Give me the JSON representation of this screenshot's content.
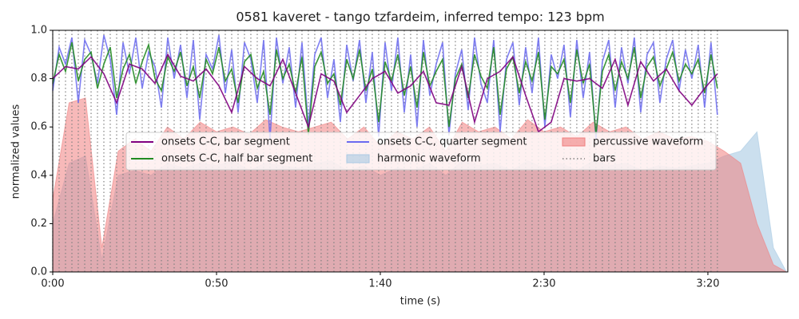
{
  "chart_data": {
    "type": "line",
    "title": "0581 kaveret - tango tzfardeim, inferred tempo: 123 bpm",
    "xlabel": "time (s)",
    "ylabel": "normalized values",
    "xlim": [
      0,
      224.4
    ],
    "ylim": [
      0,
      1
    ],
    "xticks": [
      {
        "value": 0,
        "label": "0:00"
      },
      {
        "value": 50,
        "label": "0:50"
      },
      {
        "value": 100,
        "label": "1:40"
      },
      {
        "value": 150,
        "label": "2:30"
      },
      {
        "value": 200,
        "label": "3:20"
      }
    ],
    "yticks": [
      {
        "value": 0,
        "label": "0.0"
      },
      {
        "value": 0.2,
        "label": "0.2"
      },
      {
        "value": 0.4,
        "label": "0.4"
      },
      {
        "value": 0.6,
        "label": "0.6"
      },
      {
        "value": 0.8,
        "label": "0.8"
      },
      {
        "value": 1,
        "label": "1.0"
      }
    ],
    "x": [
      0,
      1.95,
      3.9,
      5.85,
      7.8,
      9.76,
      11.71,
      13.66,
      15.61,
      17.56,
      19.51,
      21.46,
      23.41,
      25.36,
      27.31,
      29.27,
      31.22,
      33.17,
      35.12,
      37.07,
      39.02,
      40.97,
      42.92,
      44.87,
      46.82,
      48.78,
      50.73,
      52.68,
      54.63,
      56.58,
      58.53,
      60.48,
      62.43,
      64.38,
      66.33,
      68.29,
      70.24,
      72.19,
      74.14,
      76.09,
      78.04,
      79.99,
      81.94,
      83.89,
      85.84,
      87.8,
      89.75,
      91.7,
      93.65,
      95.6,
      97.55,
      99.5,
      101.45,
      103.4,
      105.35,
      107.31,
      109.26,
      111.21,
      113.16,
      115.11,
      117.06,
      119.01,
      120.96,
      122.91,
      124.86,
      126.82,
      128.77,
      130.72,
      132.67,
      134.62,
      136.57,
      138.52,
      140.47,
      142.42,
      144.37,
      146.33,
      148.28,
      150.23,
      152.18,
      154.13,
      156.08,
      158.03,
      159.98,
      161.93,
      163.88,
      165.84,
      167.79,
      169.74,
      171.69,
      173.64,
      175.59,
      177.54,
      179.49,
      181.44,
      183.39,
      185.35,
      187.3,
      189.25,
      191.2,
      193.15,
      195.1,
      197.05,
      199,
      200.95,
      202.9
    ],
    "areas": [
      {
        "name": "harmonic waveform",
        "color": "#a9c9e3",
        "x": [
          0,
          5,
          10,
          15,
          20,
          25,
          30,
          35,
          40,
          45,
          50,
          55,
          60,
          65,
          70,
          75,
          80,
          85,
          90,
          95,
          100,
          105,
          110,
          115,
          120,
          125,
          130,
          135,
          140,
          145,
          150,
          155,
          160,
          165,
          170,
          175,
          180,
          185,
          190,
          195,
          200,
          205,
          210,
          215,
          220,
          224
        ],
        "values": [
          0.2,
          0.45,
          0.48,
          0.05,
          0.4,
          0.42,
          0.4,
          0.45,
          0.43,
          0.45,
          0.44,
          0.46,
          0.42,
          0.45,
          0.44,
          0.43,
          0.45,
          0.46,
          0.42,
          0.44,
          0.4,
          0.43,
          0.42,
          0.45,
          0.4,
          0.46,
          0.44,
          0.45,
          0.42,
          0.46,
          0.43,
          0.45,
          0.42,
          0.46,
          0.44,
          0.45,
          0.42,
          0.44,
          0.43,
          0.44,
          0.45,
          0.48,
          0.5,
          0.58,
          0.1,
          0
        ]
      },
      {
        "name": "percussive waveform",
        "color": "#f08080",
        "x": [
          0,
          5,
          10,
          15,
          20,
          25,
          30,
          35,
          40,
          45,
          50,
          55,
          60,
          65,
          70,
          75,
          80,
          85,
          90,
          95,
          100,
          105,
          110,
          115,
          120,
          125,
          130,
          135,
          140,
          145,
          150,
          155,
          160,
          165,
          170,
          175,
          180,
          185,
          190,
          195,
          200,
          205,
          210,
          215,
          220,
          224
        ],
        "values": [
          0.3,
          0.7,
          0.72,
          0.1,
          0.5,
          0.55,
          0.5,
          0.6,
          0.55,
          0.62,
          0.58,
          0.6,
          0.57,
          0.63,
          0.6,
          0.58,
          0.6,
          0.62,
          0.55,
          0.6,
          0.52,
          0.58,
          0.55,
          0.6,
          0.5,
          0.62,
          0.58,
          0.6,
          0.55,
          0.63,
          0.58,
          0.6,
          0.56,
          0.62,
          0.58,
          0.6,
          0.55,
          0.58,
          0.55,
          0.56,
          0.54,
          0.5,
          0.45,
          0.2,
          0.03,
          0
        ]
      }
    ],
    "bars": {
      "name": "bars",
      "color": "#808080"
    },
    "series": [
      {
        "name": "onsets C-C, bar segment",
        "color": "#800080",
        "x": [
          0,
          3.9,
          7.8,
          11.71,
          15.61,
          19.51,
          23.41,
          27.31,
          31.22,
          35.12,
          39.02,
          42.92,
          46.82,
          50.73,
          54.63,
          58.53,
          62.43,
          66.33,
          70.24,
          74.14,
          78.04,
          81.94,
          85.84,
          89.75,
          93.65,
          97.55,
          101.45,
          105.35,
          109.26,
          113.16,
          117.06,
          120.96,
          124.86,
          128.77,
          132.67,
          136.57,
          140.47,
          144.37,
          148.28,
          152.18,
          156.08,
          159.98,
          163.88,
          167.79,
          171.69,
          175.59,
          179.49,
          183.39,
          187.3,
          191.2,
          195.1,
          199,
          202.9
        ],
        "values": [
          0.8,
          0.85,
          0.84,
          0.89,
          0.82,
          0.7,
          0.86,
          0.84,
          0.78,
          0.9,
          0.81,
          0.79,
          0.84,
          0.77,
          0.66,
          0.85,
          0.8,
          0.77,
          0.88,
          0.74,
          0.6,
          0.82,
          0.79,
          0.66,
          0.73,
          0.8,
          0.83,
          0.74,
          0.77,
          0.83,
          0.7,
          0.69,
          0.85,
          0.62,
          0.8,
          0.83,
          0.89,
          0.73,
          0.58,
          0.62,
          0.8,
          0.79,
          0.8,
          0.76,
          0.88,
          0.69,
          0.87,
          0.79,
          0.84,
          0.75,
          0.69,
          0.76,
          0.82
        ]
      },
      {
        "name": "onsets C-C, half bar segment",
        "color": "#228b22",
        "values": [
          0.78,
          0.9,
          0.83,
          0.95,
          0.79,
          0.88,
          0.91,
          0.76,
          0.86,
          0.93,
          0.72,
          0.84,
          0.9,
          0.78,
          0.87,
          0.94,
          0.8,
          0.75,
          0.89,
          0.83,
          0.91,
          0.77,
          0.85,
          0.72,
          0.88,
          0.82,
          0.93,
          0.79,
          0.84,
          0.7,
          0.87,
          0.9,
          0.76,
          0.83,
          0.65,
          0.92,
          0.8,
          0.86,
          0.74,
          0.89,
          0.57,
          0.85,
          0.91,
          0.78,
          0.82,
          0.69,
          0.88,
          0.8,
          0.92,
          0.75,
          0.84,
          0.62,
          0.87,
          0.79,
          0.9,
          0.73,
          0.85,
          0.68,
          0.91,
          0.77,
          0.83,
          0.88,
          0.6,
          0.8,
          0.86,
          0.72,
          0.9,
          0.81,
          0.76,
          0.93,
          0.65,
          0.84,
          0.89,
          0.74,
          0.87,
          0.79,
          0.91,
          0.63,
          0.85,
          0.82,
          0.88,
          0.7,
          0.92,
          0.78,
          0.86,
          0.57,
          0.83,
          0.9,
          0.75,
          0.87,
          0.8,
          0.93,
          0.72,
          0.85,
          0.89,
          0.77,
          0.84,
          0.91,
          0.79,
          0.86,
          0.82,
          0.88,
          0.74,
          0.9,
          0.76
        ]
      },
      {
        "name": "onsets C-C, quarter segment",
        "color": "#6a6af0",
        "values": [
          0.75,
          0.93,
          0.86,
          0.97,
          0.7,
          0.96,
          0.9,
          0.78,
          0.98,
          0.88,
          0.65,
          0.95,
          0.82,
          0.97,
          0.76,
          0.91,
          0.85,
          0.68,
          0.97,
          0.8,
          0.94,
          0.72,
          0.96,
          0.63,
          0.9,
          0.84,
          0.98,
          0.74,
          0.92,
          0.66,
          0.95,
          0.88,
          0.7,
          0.96,
          0.55,
          0.97,
          0.78,
          0.93,
          0.68,
          0.95,
          0.6,
          0.9,
          0.97,
          0.72,
          0.88,
          0.62,
          0.94,
          0.79,
          0.96,
          0.7,
          0.91,
          0.56,
          0.95,
          0.75,
          0.97,
          0.66,
          0.9,
          0.6,
          0.96,
          0.73,
          0.86,
          0.95,
          0.57,
          0.82,
          0.92,
          0.67,
          0.97,
          0.78,
          0.7,
          0.96,
          0.58,
          0.88,
          0.95,
          0.69,
          0.93,
          0.74,
          0.97,
          0.6,
          0.9,
          0.8,
          0.94,
          0.64,
          0.96,
          0.72,
          0.91,
          0.55,
          0.87,
          0.96,
          0.68,
          0.93,
          0.78,
          0.97,
          0.66,
          0.9,
          0.95,
          0.7,
          0.88,
          0.96,
          0.75,
          0.92,
          0.8,
          0.94,
          0.68,
          0.95,
          0.65
        ]
      }
    ]
  }
}
